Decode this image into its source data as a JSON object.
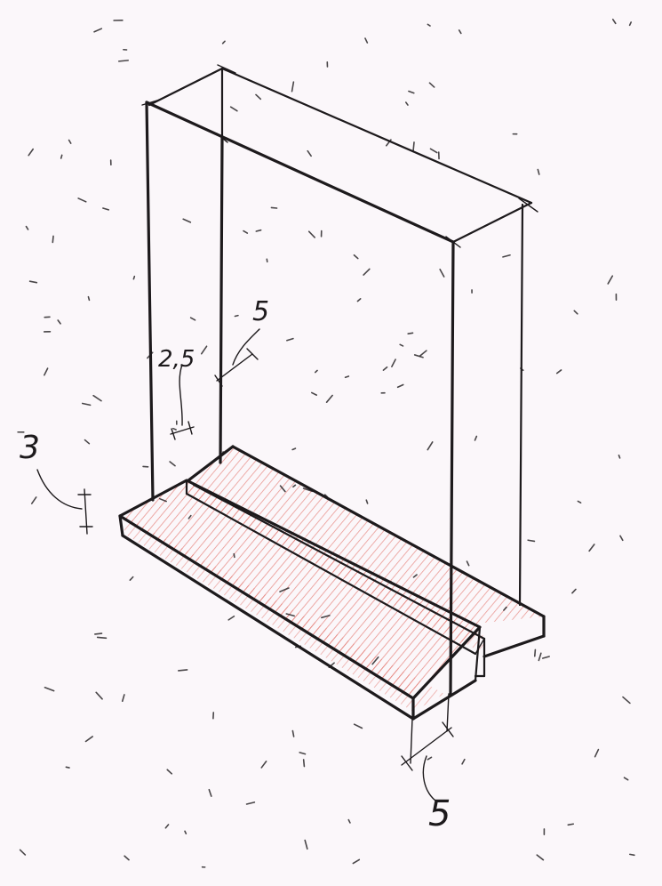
{
  "drawing": {
    "colors": {
      "paper": "#fbf7fa",
      "ink": "#1d1a1c",
      "hatch": "#e0645a"
    },
    "dimensions": [
      {
        "id": "slot_width",
        "label": "2,5"
      },
      {
        "id": "slot_offset",
        "label": "5"
      },
      {
        "id": "base_thickness",
        "label": "3"
      },
      {
        "id": "front_board",
        "label": "5"
      }
    ]
  }
}
